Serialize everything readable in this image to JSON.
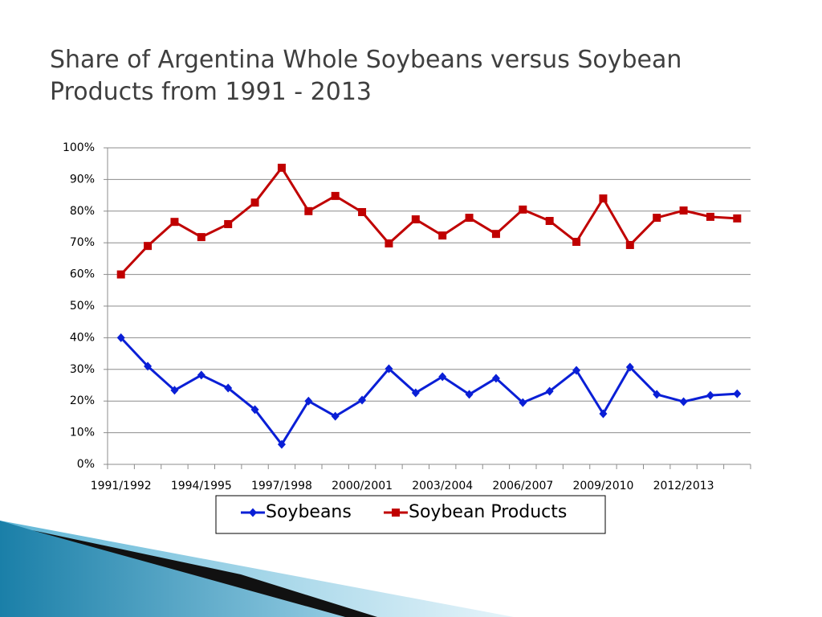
{
  "chart_data": {
    "type": "line",
    "title": "Share of Argentina Whole Soybeans versus Soybean Products from 1991 - 2013",
    "title_lines": [
      "Share of Argentina Whole Soybeans versus Soybean",
      "Products from 1991 - 2013"
    ],
    "categories": [
      "1991/1992",
      null,
      null,
      "1994/1995",
      null,
      null,
      "1997/1998",
      null,
      null,
      "2000/2001",
      null,
      null,
      "2003/2004",
      null,
      null,
      "2006/2007",
      null,
      null,
      "2009/2010",
      null,
      null,
      "2012/2013",
      null,
      null
    ],
    "series": [
      {
        "name": "Soybeans",
        "color": "#0a1fd6",
        "marker": "diamond",
        "values": [
          40,
          31,
          23.4,
          28.2,
          24.1,
          17.3,
          6.3,
          20,
          15.2,
          20.3,
          30.2,
          22.6,
          27.7,
          22.1,
          27.2,
          19.5,
          23.1,
          29.7,
          16,
          30.7,
          22.1,
          19.8,
          21.8,
          22.3
        ]
      },
      {
        "name": "Soybean Products",
        "color": "#c00000",
        "marker": "square",
        "values": [
          60,
          69,
          76.6,
          71.8,
          75.9,
          82.7,
          93.7,
          80,
          84.8,
          79.7,
          69.8,
          77.4,
          72.3,
          77.9,
          72.8,
          80.5,
          76.9,
          70.3,
          84,
          69.3,
          77.9,
          80.2,
          78.2,
          77.7
        ]
      }
    ],
    "ylim": [
      0,
      100
    ],
    "yticks": [
      {
        "value": 0,
        "label": "0%"
      },
      {
        "value": 10,
        "label": "10%"
      },
      {
        "value": 20,
        "label": "20%"
      },
      {
        "value": 30,
        "label": "30%"
      },
      {
        "value": 40,
        "label": "40%"
      },
      {
        "value": 50,
        "label": "50%"
      },
      {
        "value": 60,
        "label": "60%"
      },
      {
        "value": 70,
        "label": "70%"
      },
      {
        "value": 80,
        "label": "80%"
      },
      {
        "value": 90,
        "label": "90%"
      },
      {
        "value": 100,
        "label": "100%"
      }
    ],
    "grid": true,
    "legend": "bottom"
  }
}
